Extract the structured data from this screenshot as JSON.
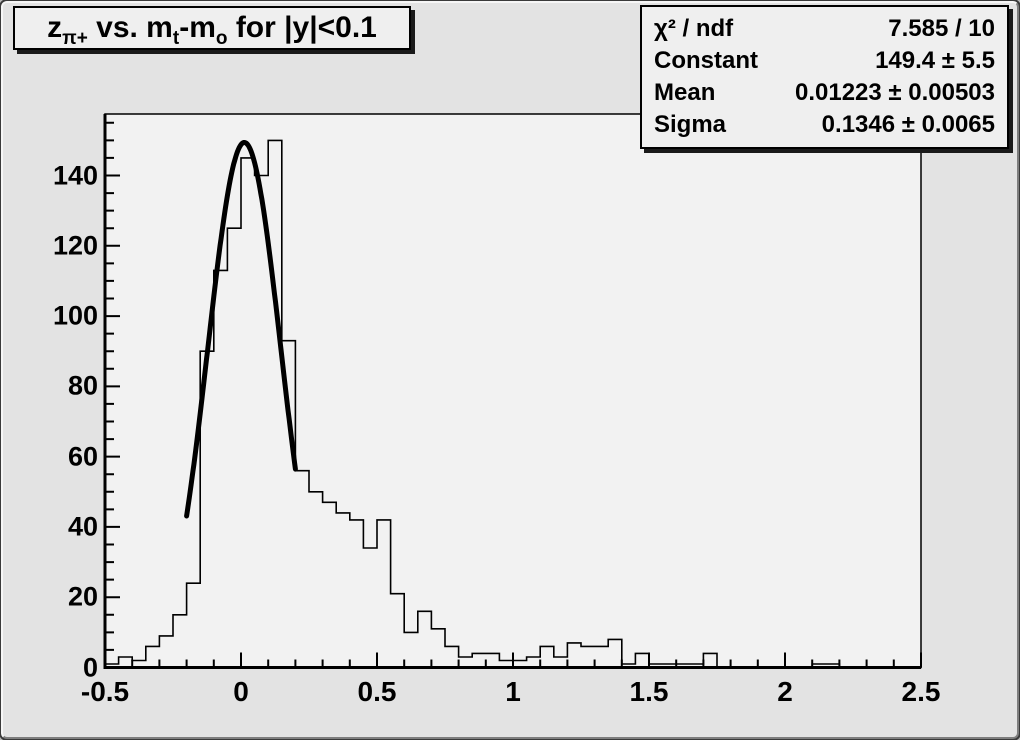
{
  "title": {
    "segments": [
      {
        "text": "z"
      },
      {
        "text": "π+",
        "sub": true
      },
      {
        "text": " vs. m"
      },
      {
        "text": "t",
        "sub": true
      },
      {
        "text": "-m"
      },
      {
        "text": "o",
        "sub": true
      },
      {
        "text": " for |y|<0.1"
      }
    ],
    "plain": "zπ+ vs. mt-mo for |y|<0.1"
  },
  "stats": {
    "rows": [
      {
        "label": "χ² / ndf",
        "value": "7.585 / 10"
      },
      {
        "label": "Constant",
        "value": "149.4 ± 5.5"
      },
      {
        "label": "Mean",
        "value": "0.01223 ± 0.00503"
      },
      {
        "label": "Sigma",
        "value": "0.1346 ± 0.0065"
      }
    ]
  },
  "chart_data": {
    "type": "bar",
    "subtype": "step-histogram",
    "title": "z_{π+} vs. m_t-m_o for |y|<0.1",
    "xlabel": "",
    "ylabel": "",
    "xlim": [
      -0.5,
      2.5
    ],
    "ylim": [
      0,
      157.5
    ],
    "grid": false,
    "legend": "none",
    "bin_start": -0.5,
    "bin_width": 0.05,
    "values": [
      1,
      3,
      2,
      6,
      9,
      15,
      24,
      90,
      113,
      125,
      145,
      140,
      150,
      93,
      56,
      50,
      47,
      44,
      42,
      34,
      42,
      21,
      10,
      16,
      11,
      6,
      3,
      4,
      4,
      2,
      2,
      3,
      6,
      3,
      7,
      6,
      6,
      8,
      1,
      4,
      1,
      1,
      1,
      1,
      4,
      0,
      0,
      0,
      0,
      0,
      0,
      0,
      1,
      1,
      0,
      0,
      0,
      0,
      0,
      0
    ],
    "x_ticks": {
      "major_step": 0.5,
      "minor_step": 0.1,
      "labels": [
        "-0.5",
        "0",
        "0.5",
        "1",
        "1.5",
        "2",
        "2.5"
      ],
      "label_values": [
        -0.5,
        0,
        0.5,
        1,
        1.5,
        2,
        2.5
      ]
    },
    "y_ticks": {
      "major_step": 20,
      "minor_step": 5,
      "labels": [
        "0",
        "20",
        "40",
        "60",
        "80",
        "100",
        "120",
        "140"
      ],
      "label_values": [
        0,
        20,
        40,
        60,
        80,
        100,
        120,
        140
      ]
    },
    "fit": {
      "type": "gaussian",
      "constant": 149.4,
      "mean": 0.01223,
      "sigma": 0.1346,
      "range": [
        -0.2,
        0.2
      ]
    },
    "colors": {
      "histogram_line": "#000000",
      "fit_line": "#000000",
      "plot_bg": "#f2f2f2",
      "canvas_bg": "#e3e3e3",
      "box_bg": "#efefef",
      "frame_line": "#000000"
    }
  }
}
